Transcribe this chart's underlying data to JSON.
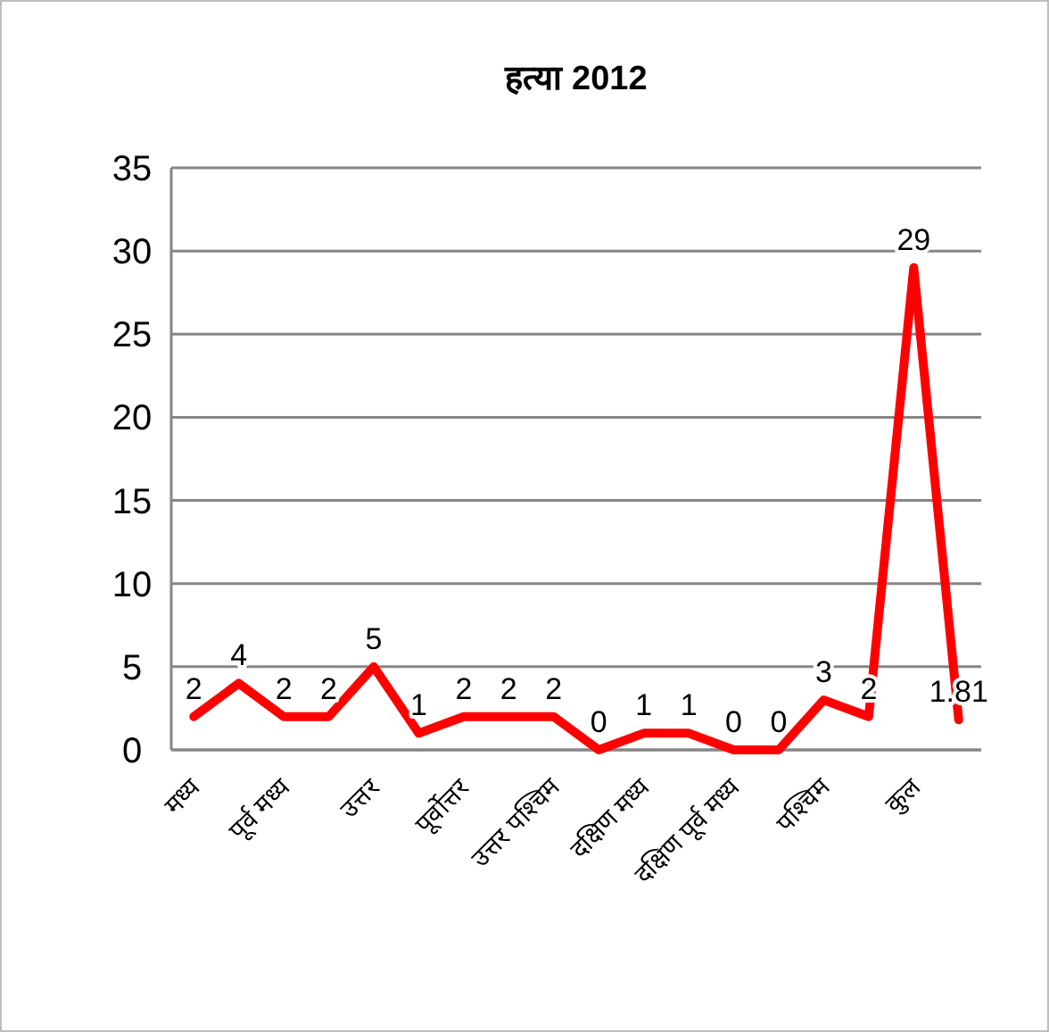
{
  "chart_data": {
    "type": "line",
    "title": "हत्या 2012",
    "categories": [
      "मध्य",
      null,
      "पूर्व मध्य",
      null,
      "उत्तर",
      null,
      "पूर्वोत्तर",
      null,
      "उत्तर पश्चिम",
      null,
      "दक्षिण मध्य",
      null,
      "दक्षिण पूर्व मध्य",
      null,
      "पश्चिम",
      null,
      "कुल",
      null
    ],
    "series": [
      {
        "color": "#ff0000",
        "values": [
          2,
          4,
          2,
          2,
          5,
          1,
          2,
          2,
          2,
          0,
          1,
          1,
          0,
          0,
          3,
          2,
          29,
          1.81
        ]
      }
    ],
    "ylim": [
      0,
      35
    ],
    "yticks": [
      0,
      5,
      10,
      15,
      20,
      25,
      30,
      35
    ],
    "grid": "y",
    "data_labels": true,
    "marker": "none",
    "line_style": "solid"
  }
}
